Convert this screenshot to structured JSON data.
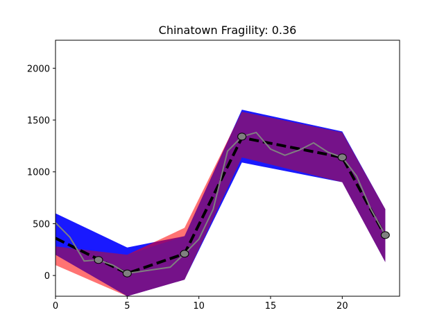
{
  "chart_data": {
    "type": "line",
    "title": "Chinatown Fragility: 0.36",
    "xlabel": "",
    "ylabel": "",
    "xlim": [
      0,
      24
    ],
    "ylim": [
      -200,
      2270
    ],
    "x_ticks": [
      0,
      5,
      10,
      15,
      20
    ],
    "y_ticks": [
      0,
      500,
      1000,
      1500,
      2000
    ],
    "x_tick_labels": [
      "0",
      "5",
      "10",
      "15",
      "20"
    ],
    "y_tick_labels": [
      "0",
      "500",
      "1000",
      "1500",
      "2000"
    ],
    "grid": false,
    "legend": "none",
    "colors": {
      "band_blue": "#0000ff",
      "band_red": "#ff0000",
      "band_purple": "#5a1a9a",
      "mean_line": "#000000",
      "series_line": "#808080",
      "marker_fill": "#808080"
    },
    "bands": [
      {
        "color": "blue",
        "x": [
          0,
          5,
          9,
          13,
          20,
          23
        ],
        "upper": [
          600,
          270,
          380,
          1600,
          1390,
          640
        ],
        "lower": [
          200,
          -200,
          -40,
          1090,
          900,
          130
        ]
      },
      {
        "color": "red",
        "x": [
          0,
          5,
          9,
          13,
          20,
          23
        ],
        "upper": [
          280,
          200,
          460,
          1580,
          1380,
          640
        ],
        "lower": [
          100,
          -200,
          -40,
          1140,
          900,
          130
        ]
      }
    ],
    "series": [
      {
        "style": "dashed-mean",
        "x": [
          0,
          5,
          9,
          13,
          20,
          23
        ],
        "values": [
          360,
          20,
          210,
          1330,
          1140,
          380
        ]
      },
      {
        "style": "solid-gray",
        "x": [
          0,
          1,
          2,
          3,
          4,
          5,
          6,
          7,
          8,
          9,
          10,
          11,
          12,
          13,
          14,
          15,
          16,
          17,
          18,
          19,
          20,
          21,
          22,
          23
        ],
        "values": [
          510,
          370,
          140,
          150,
          100,
          20,
          40,
          60,
          80,
          210,
          350,
          640,
          1200,
          1340,
          1380,
          1220,
          1160,
          1210,
          1280,
          1190,
          1140,
          960,
          640,
          390
        ]
      }
    ],
    "markers": {
      "x": [
        3,
        5,
        9,
        13,
        20,
        23
      ],
      "values": [
        150,
        20,
        210,
        1340,
        1140,
        390
      ]
    }
  }
}
